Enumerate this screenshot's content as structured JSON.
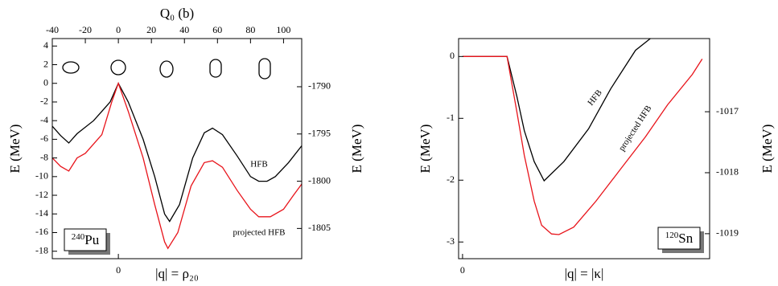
{
  "chart_data": [
    {
      "type": "line",
      "xlabel_top": "Q₀ (b)",
      "xlabel": "|q| = ρ₂₀",
      "ylabel": "E (MeV)",
      "y2label": "E (MeV)",
      "xlim": [
        -40,
        111
      ],
      "xticks": [
        -40,
        -20,
        0,
        20,
        40,
        60,
        80,
        100
      ],
      "bottom_xticks": [
        0
      ],
      "ylim": [
        -18.8,
        4.8
      ],
      "yticks": [
        4,
        2,
        0,
        -2,
        -4,
        -6,
        -8,
        -10,
        -12,
        -14,
        -16,
        -18
      ],
      "y2lim": [
        -1808.2,
        -1784.9
      ],
      "y2ticks": [
        -1790,
        -1795,
        -1800,
        -1805
      ],
      "label": {
        "mass": "240",
        "element": "Pu"
      },
      "annotations": [
        "HFB",
        "projected HFB"
      ],
      "series": [
        {
          "name": "HFB",
          "color": "#000000",
          "x": [
            -40,
            -35,
            -30,
            -25,
            -15,
            -5,
            0,
            6,
            15,
            22,
            28,
            31,
            37,
            45,
            52,
            57,
            63,
            72,
            80,
            85,
            90,
            95,
            103,
            111
          ],
          "values": [
            -4.6,
            -5.6,
            -6.4,
            -5.4,
            -4,
            -2,
            0,
            -2,
            -6,
            -10,
            -14,
            -14.8,
            -13,
            -8,
            -5.3,
            -4.8,
            -5.5,
            -7.8,
            -10,
            -10.5,
            -10.5,
            -10,
            -8.5,
            -6.7
          ]
        },
        {
          "name": "projected HFB",
          "color": "#e8141b",
          "x": [
            -40,
            -35,
            -30,
            -25,
            -20,
            -10,
            -4,
            0,
            6,
            15,
            22,
            28,
            30,
            36,
            44,
            52,
            57,
            63,
            72,
            80,
            85,
            92,
            100,
            106,
            111
          ],
          "values": [
            -8,
            -8.9,
            -9.4,
            -8,
            -7.5,
            -5.5,
            -2,
            0,
            -3,
            -8,
            -13,
            -17,
            -17.7,
            -16,
            -11,
            -8.5,
            -8.3,
            -9,
            -11.5,
            -13.5,
            -14.3,
            -14.3,
            -13.5,
            -12,
            -10.8
          ]
        }
      ]
    },
    {
      "type": "line",
      "xlabel": "|q| = |κ|",
      "ylabel": "E (MeV)",
      "y2label": "E (MeV)",
      "xlim": [
        -0.016,
        1
      ],
      "bottom_xticks": [
        0
      ],
      "ylim": [
        -3.27,
        0.29
      ],
      "yticks": [
        0,
        -1,
        -2,
        -3
      ],
      "y2lim": [
        -1019.41,
        -1015.8
      ],
      "y2ticks": [
        -1017,
        -1018,
        -1019
      ],
      "label": {
        "mass": "120",
        "element": "Sn"
      },
      "annotations": [
        "HFB",
        "projected HFB"
      ],
      "series": [
        {
          "name": "HFB",
          "color": "#000000",
          "x": [
            0,
            0.18,
            0.22,
            0.25,
            0.29,
            0.33,
            0.41,
            0.51,
            0.6,
            0.7,
            0.76
          ],
          "values": [
            0,
            0,
            -0.65,
            -1.2,
            -1.7,
            -2.01,
            -1.7,
            -1.17,
            -0.52,
            0.1,
            0.29
          ]
        },
        {
          "name": "projected HFB",
          "color": "#e8141b",
          "x": [
            0,
            0.18,
            0.22,
            0.25,
            0.29,
            0.32,
            0.36,
            0.39,
            0.45,
            0.54,
            0.64,
            0.74,
            0.83,
            0.93,
            0.97
          ],
          "values": [
            0,
            0,
            -0.9,
            -1.6,
            -2.34,
            -2.73,
            -2.87,
            -2.88,
            -2.76,
            -2.34,
            -1.82,
            -1.3,
            -0.78,
            -0.29,
            -0.04
          ]
        }
      ]
    }
  ]
}
